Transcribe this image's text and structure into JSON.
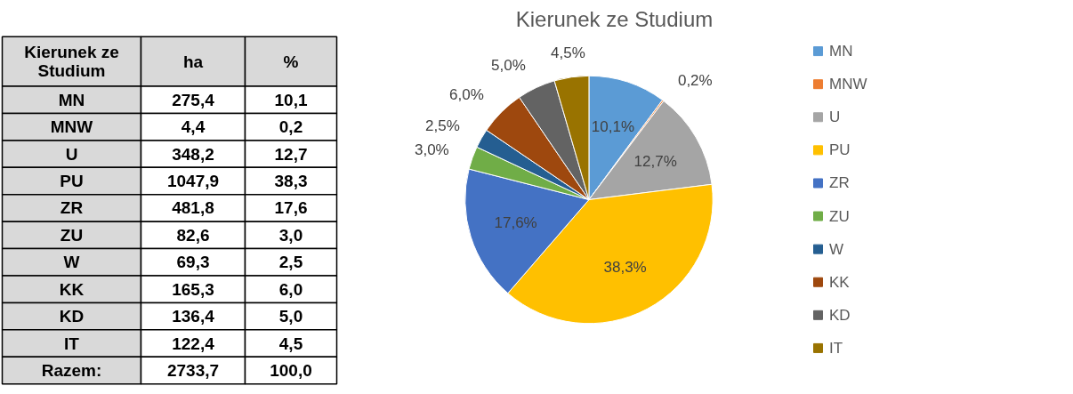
{
  "chart_data": [
    {
      "type": "other",
      "annotations": [
        "Kierunek ze Studium",
        "ha",
        "%",
        "MN",
        "275,4",
        "10,1",
        "MNW",
        "4,4",
        "0,2",
        "U",
        "348,2",
        "12,7",
        "PU",
        "1047,9",
        "38,3",
        "ZR",
        "481,8",
        "17,6",
        "ZU",
        "82,6",
        "3,0",
        "W",
        "69,3",
        "2,5",
        "KK",
        "165,3",
        "6,0",
        "KD",
        "136,4",
        "5,0",
        "IT",
        "122,4",
        "4,5",
        "Razem:",
        "2733,7",
        "100,0"
      ]
    },
    {
      "type": "pie",
      "title": "Kierunek ze Studium",
      "categories": [
        "MN",
        "MNW",
        "U",
        "PU",
        "ZR",
        "ZU",
        "W",
        "KK",
        "KD",
        "IT"
      ],
      "values": [
        10.1,
        0.2,
        12.7,
        38.3,
        17.6,
        3.0,
        2.5,
        6.0,
        5.0,
        4.5
      ],
      "value_labels": [
        "10,1%",
        "0,2%",
        "12,7%",
        "38,3%",
        "17,6%",
        "3,0%",
        "2,5%",
        "6,0%",
        "5,0%",
        "4,5%"
      ],
      "colors": [
        "#5b9bd5",
        "#ed7d31",
        "#a5a5a5",
        "#ffc000",
        "#4472c4",
        "#70ad47",
        "#255e91",
        "#9e480e",
        "#636363",
        "#997300"
      ],
      "legend": "right"
    }
  ]
}
